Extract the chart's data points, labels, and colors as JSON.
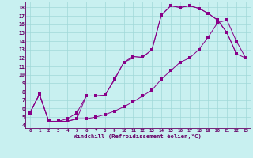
{
  "xlabel": "Windchill (Refroidissement éolien,°C)",
  "bg_color": "#c8f0f0",
  "line_color": "#880088",
  "grid_color": "#a0d8d8",
  "spine_color": "#660066",
  "tick_color": "#660066",
  "xlim": [
    -0.5,
    23.5
  ],
  "ylim": [
    3.7,
    18.7
  ],
  "xticks": [
    0,
    1,
    2,
    3,
    4,
    5,
    6,
    7,
    8,
    9,
    10,
    11,
    12,
    13,
    14,
    15,
    16,
    17,
    18,
    19,
    20,
    21,
    22,
    23
  ],
  "yticks": [
    4,
    5,
    6,
    7,
    8,
    9,
    10,
    11,
    12,
    13,
    14,
    15,
    16,
    17,
    18
  ],
  "curve1_x": [
    0,
    1,
    2,
    3,
    4,
    5,
    6,
    7,
    8,
    9,
    10,
    11,
    12,
    13,
    14,
    15,
    16,
    17,
    18,
    19,
    20,
    21,
    22
  ],
  "curve1_y": [
    5.5,
    7.7,
    4.5,
    4.5,
    4.5,
    4.8,
    7.5,
    7.5,
    7.6,
    9.4,
    11.5,
    12.2,
    12.1,
    13.0,
    17.1,
    18.2,
    18.0,
    18.2,
    17.9,
    17.3,
    16.5,
    15.0,
    12.5
  ],
  "curve2_x": [
    0,
    1,
    2,
    3,
    4,
    5,
    6,
    7,
    8,
    9,
    10,
    11,
    12,
    13,
    14,
    15,
    16,
    17,
    18,
    19,
    20,
    21,
    22,
    23
  ],
  "curve2_y": [
    5.5,
    7.7,
    4.5,
    4.5,
    4.8,
    5.5,
    7.5,
    7.5,
    7.6,
    9.5,
    11.5,
    12.0,
    12.1,
    13.0,
    17.1,
    18.2,
    18.0,
    18.2,
    17.9,
    17.3,
    16.5,
    15.0,
    12.5,
    12.0
  ],
  "curve3_x": [
    0,
    1,
    2,
    3,
    4,
    5,
    6,
    7,
    8,
    9,
    10,
    11,
    12,
    13,
    14,
    15,
    16,
    17,
    18,
    19,
    20,
    21,
    22,
    23
  ],
  "curve3_y": [
    5.5,
    7.7,
    4.5,
    4.5,
    4.5,
    4.8,
    4.8,
    5.0,
    5.3,
    5.7,
    6.2,
    6.8,
    7.5,
    8.2,
    9.5,
    10.5,
    11.5,
    12.0,
    13.0,
    14.5,
    16.2,
    16.5,
    14.0,
    12.0
  ]
}
